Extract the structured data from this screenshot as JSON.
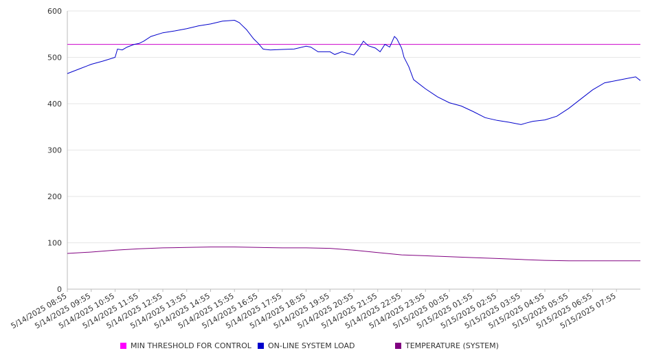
{
  "chart_data": {
    "type": "line",
    "title": "",
    "xlabel": "",
    "ylabel": "",
    "ylim": [
      0,
      600
    ],
    "yticks": [
      0,
      100,
      200,
      300,
      400,
      500,
      600
    ],
    "grid": true,
    "legend_position": "bottom",
    "x_tick_labels": [
      "5/14/2025 08:55",
      "5/14/2025 09:55",
      "5/14/2025 10:55",
      "5/14/2025 11:55",
      "5/14/2025 12:55",
      "5/14/2025 13:55",
      "5/14/2025 14:55",
      "5/14/2025 15:55",
      "5/14/2025 16:55",
      "5/14/2025 17:55",
      "5/14/2025 18:55",
      "5/14/2025 19:55",
      "5/14/2025 20:55",
      "5/14/2025 21:55",
      "5/14/2025 22:55",
      "5/14/2025 23:55",
      "5/15/2025 00:55",
      "5/15/2025 01:55",
      "5/15/2025 02:55",
      "5/15/2025 03:55",
      "5/15/2025 04:55",
      "5/15/2025 05:55",
      "5/15/2025 06:55",
      "5/15/2025 07:55"
    ],
    "x_hours_end": 24,
    "series": [
      {
        "name": "MIN THRESHOLD FOR CONTROL",
        "color": "#cc00cc",
        "x": [
          0,
          24
        ],
        "values": [
          528,
          528
        ]
      },
      {
        "name": "ON-LINE SYSTEM LOAD",
        "color": "#0000cc",
        "x": [
          0,
          0.5,
          1,
          1.5,
          2,
          2.1,
          2.3,
          2.5,
          2.8,
          3,
          3.2,
          3.5,
          4,
          4.5,
          5,
          5.5,
          6,
          6.5,
          7,
          7.2,
          7.3,
          7.5,
          7.8,
          8,
          8.2,
          8.3,
          8.5,
          9,
          9.5,
          10,
          10.2,
          10.5,
          11,
          11.2,
          11.5,
          12,
          12.2,
          12.4,
          12.6,
          12.9,
          13.1,
          13.3,
          13.5,
          13.7,
          13.8,
          14,
          14.1,
          14.2,
          14.3,
          14.5,
          15,
          15.5,
          16,
          16.5,
          17,
          17.5,
          18,
          18.5,
          19,
          19.2,
          19.5,
          20,
          20.5,
          21,
          21.5,
          22,
          22.5,
          23,
          23.5,
          23.8,
          24
        ],
        "values": [
          465,
          475,
          485,
          492,
          500,
          518,
          516,
          522,
          528,
          530,
          535,
          545,
          553,
          557,
          562,
          568,
          572,
          578,
          580,
          575,
          570,
          560,
          540,
          530,
          518,
          517,
          516,
          517,
          518,
          524,
          522,
          512,
          512,
          506,
          512,
          505,
          518,
          535,
          525,
          520,
          512,
          528,
          522,
          545,
          540,
          520,
          500,
          490,
          480,
          452,
          432,
          415,
          402,
          395,
          383,
          370,
          364,
          360,
          355,
          358,
          362,
          365,
          373,
          390,
          410,
          430,
          445,
          450,
          455,
          458,
          450
        ]
      },
      {
        "name": "TEMPERATURE (SYSTEM)",
        "color": "#800080",
        "x": [
          0,
          1,
          2,
          3,
          4,
          5,
          6,
          7,
          8,
          9,
          10,
          11,
          12,
          13,
          14,
          15,
          16,
          17,
          18,
          19,
          20,
          21,
          22,
          23,
          24
        ],
        "values": [
          77,
          80,
          84,
          87,
          89,
          90,
          91,
          91,
          90,
          89,
          89,
          88,
          84,
          79,
          74,
          72,
          70,
          68,
          66,
          64,
          62,
          61,
          61,
          61,
          61
        ]
      }
    ]
  }
}
